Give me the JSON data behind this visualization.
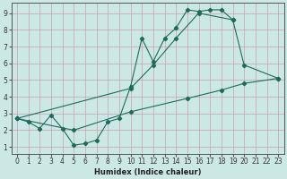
{
  "xlabel": "Humidex (Indice chaleur)",
  "bg_color": "#cce8e4",
  "grid_color": "#c8a0a8",
  "line_color": "#1e6b5a",
  "xlim": [
    -0.5,
    23.5
  ],
  "ylim": [
    0.6,
    9.6
  ],
  "xticks": [
    0,
    1,
    2,
    3,
    4,
    5,
    6,
    7,
    8,
    9,
    10,
    11,
    12,
    13,
    14,
    15,
    16,
    17,
    18,
    19,
    20,
    21,
    22,
    23
  ],
  "yticks": [
    1,
    2,
    3,
    4,
    5,
    6,
    7,
    8,
    9
  ],
  "line1_x": [
    0,
    1,
    2,
    3,
    4,
    5,
    6,
    7,
    8,
    9,
    10,
    11,
    12,
    13,
    14,
    15,
    16,
    17,
    18,
    19
  ],
  "line1_y": [
    2.7,
    2.5,
    2.1,
    2.9,
    2.1,
    1.1,
    1.2,
    1.4,
    2.5,
    2.7,
    4.6,
    7.5,
    6.1,
    7.5,
    8.1,
    9.2,
    9.1,
    9.2,
    9.2,
    8.6
  ],
  "line2_x": [
    0,
    10,
    12,
    14,
    16,
    19,
    20,
    23
  ],
  "line2_y": [
    2.7,
    4.5,
    5.9,
    7.5,
    9.0,
    8.6,
    5.9,
    5.1
  ],
  "line3_x": [
    0,
    5,
    10,
    15,
    18,
    20,
    23
  ],
  "line3_y": [
    2.7,
    2.0,
    3.1,
    3.9,
    4.4,
    4.8,
    5.1
  ]
}
